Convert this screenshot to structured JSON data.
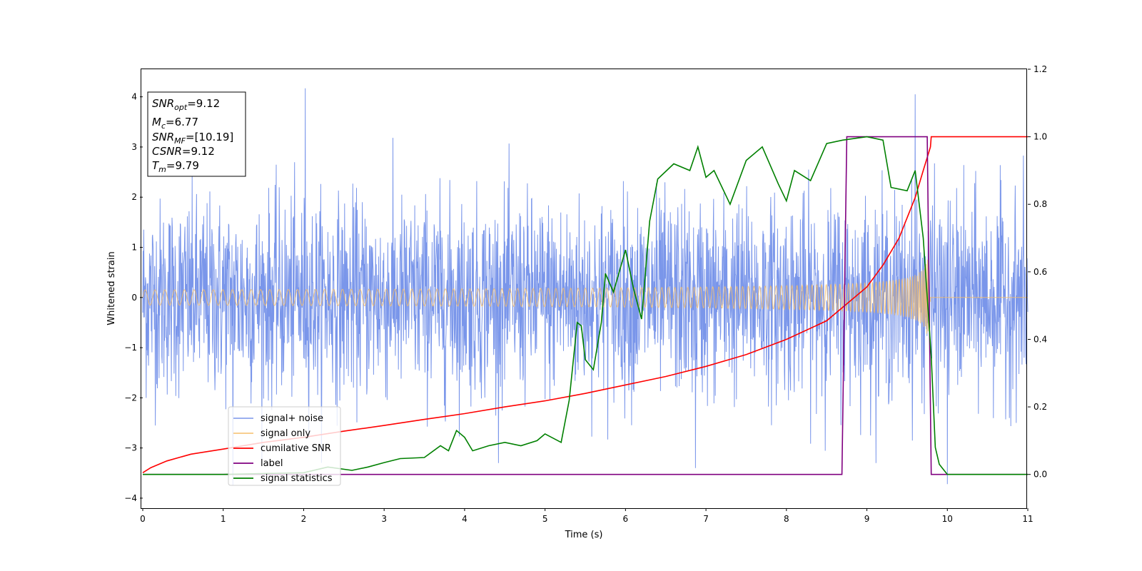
{
  "chart_data": {
    "type": "line",
    "xlabel": "Time (s)",
    "ylabel": "Whitened strain",
    "xlim": [
      0,
      11
    ],
    "ylim": [
      -4.2,
      4.55
    ],
    "y2lim": [
      -0.1,
      1.2
    ],
    "grid": false,
    "legend_position": "lower-left",
    "x_ticks": [
      0,
      1,
      2,
      3,
      4,
      5,
      6,
      7,
      8,
      9,
      10,
      11
    ],
    "x_tick_labels": [
      "0",
      "1",
      "2",
      "3",
      "4",
      "5",
      "6",
      "7",
      "8",
      "9",
      "10",
      "11"
    ],
    "y_ticks": [
      -4,
      -3,
      -2,
      -1,
      0,
      1,
      2,
      3,
      4
    ],
    "y_tick_labels": [
      "−4",
      "−3",
      "−2",
      "−1",
      "0",
      "1",
      "2",
      "3",
      "4"
    ],
    "y2_ticks": [
      0.0,
      0.2,
      0.4,
      0.6,
      0.8,
      1.0,
      1.2
    ],
    "y2_tick_labels": [
      "0.0",
      "0.2",
      "0.4",
      "0.6",
      "0.8",
      "1.0",
      "1.2"
    ],
    "annotation_lines": [
      {
        "base": "SNR",
        "sub": "opt",
        "value": "=9.12"
      },
      {
        "base": "M",
        "sub": "c",
        "value": "=6.77"
      },
      {
        "base": "SNR",
        "sub": "MF",
        "value": "=[10.19]"
      },
      {
        "base": "CSNR",
        "sub": "",
        "value": "=9.12"
      },
      {
        "base": "T",
        "sub": "m",
        "value": "=9.79"
      }
    ],
    "series": [
      {
        "name": "signal+ noise",
        "color": "#4169e1",
        "axis": "left",
        "kind": "noise_envelope",
        "amplitude": 1.35,
        "peaks": [
          [
            2.02,
            4.17
          ],
          [
            9.6,
            4.05
          ],
          [
            10.0,
            -3.72
          ],
          [
            1.12,
            -3.75
          ],
          [
            6.87,
            -3.4
          ]
        ]
      },
      {
        "name": "signal only",
        "color": "#f5bd6b",
        "axis": "left",
        "kind": "chirp_envelope",
        "start_amp": 0.05,
        "peak_amp": 0.95,
        "end_time": 9.79
      },
      {
        "name": "cumilative SNR",
        "color": "#ff0000",
        "axis": "right",
        "x": [
          0,
          0.1,
          0.3,
          0.6,
          1,
          1.5,
          2,
          2.5,
          3,
          3.5,
          4,
          4.5,
          5,
          5.5,
          6,
          6.5,
          7,
          7.5,
          8,
          8.5,
          9,
          9.2,
          9.4,
          9.6,
          9.7,
          9.79,
          9.8,
          11
        ],
        "y": [
          0.005,
          0.02,
          0.04,
          0.06,
          0.075,
          0.095,
          0.11,
          0.128,
          0.145,
          0.163,
          0.18,
          0.2,
          0.218,
          0.24,
          0.265,
          0.29,
          0.32,
          0.355,
          0.4,
          0.455,
          0.555,
          0.62,
          0.7,
          0.82,
          0.9,
          0.97,
          1.0,
          1.0
        ]
      },
      {
        "name": "label",
        "color": "#800080",
        "axis": "right",
        "x": [
          0,
          8.69,
          8.75,
          9.75,
          9.8,
          11
        ],
        "y": [
          0,
          0,
          1,
          1,
          0,
          0
        ]
      },
      {
        "name": "signal statistics",
        "color": "#008000",
        "axis": "right",
        "x": [
          0,
          1,
          2,
          2.3,
          2.6,
          2.8,
          3,
          3.2,
          3.5,
          3.7,
          3.8,
          3.9,
          4.0,
          4.1,
          4.3,
          4.5,
          4.7,
          4.9,
          5.0,
          5.2,
          5.3,
          5.4,
          5.45,
          5.5,
          5.6,
          5.7,
          5.75,
          5.85,
          6.0,
          6.1,
          6.2,
          6.3,
          6.4,
          6.6,
          6.8,
          6.9,
          7.0,
          7.1,
          7.3,
          7.5,
          7.7,
          7.9,
          8.0,
          8.1,
          8.3,
          8.5,
          8.7,
          9.0,
          9.2,
          9.3,
          9.5,
          9.6,
          9.7,
          9.8,
          9.85,
          9.9,
          10.0,
          11
        ],
        "y": [
          0.0,
          0.0,
          0.005,
          0.022,
          0.012,
          0.022,
          0.035,
          0.047,
          0.05,
          0.085,
          0.07,
          0.13,
          0.11,
          0.07,
          0.085,
          0.095,
          0.085,
          0.1,
          0.12,
          0.095,
          0.22,
          0.45,
          0.44,
          0.34,
          0.31,
          0.45,
          0.595,
          0.54,
          0.665,
          0.55,
          0.46,
          0.75,
          0.875,
          0.92,
          0.9,
          0.97,
          0.88,
          0.9,
          0.8,
          0.93,
          0.97,
          0.86,
          0.81,
          0.9,
          0.87,
          0.98,
          0.99,
          1.0,
          0.99,
          0.85,
          0.84,
          0.9,
          0.7,
          0.35,
          0.08,
          0.03,
          0.0,
          0.0
        ]
      }
    ]
  }
}
